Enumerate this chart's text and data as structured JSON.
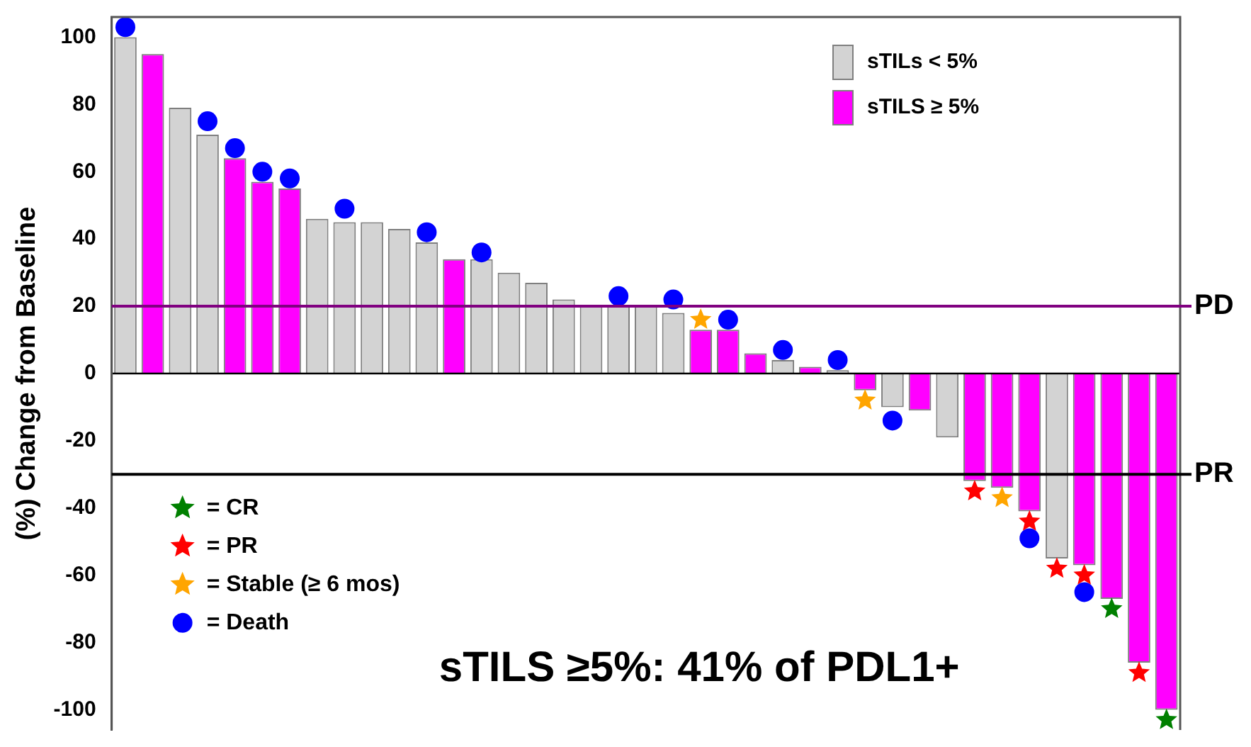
{
  "chart_data": {
    "type": "bar",
    "ylabel": "(%) Change from Baseline",
    "categories": [
      null,
      null,
      null,
      null,
      null,
      null,
      null,
      null,
      null,
      null,
      null,
      null,
      null,
      null,
      null,
      null,
      null,
      null,
      null,
      null,
      null,
      null,
      null,
      null,
      null,
      null,
      null,
      null,
      null,
      null,
      null,
      null,
      null,
      null,
      null,
      null,
      null,
      null,
      null
    ],
    "series": [
      {
        "name": "sTILs < 5%",
        "color": "#d3d3d3",
        "values": [
          100,
          null,
          79,
          71,
          null,
          null,
          null,
          46,
          45,
          45,
          43,
          39,
          null,
          34,
          30,
          27,
          22,
          20,
          20,
          20,
          18,
          null,
          null,
          null,
          4,
          null,
          1,
          null,
          -10,
          null,
          -19,
          null,
          null,
          null,
          -55,
          null,
          null,
          null,
          null
        ]
      },
      {
        "name": "sTILS ≥ 5%",
        "color": "#ff00ff",
        "values": [
          null,
          95,
          null,
          null,
          64,
          57,
          55,
          null,
          null,
          null,
          null,
          null,
          34,
          null,
          null,
          null,
          null,
          null,
          null,
          null,
          null,
          13,
          13,
          6,
          null,
          2,
          null,
          -5,
          null,
          -11,
          null,
          -32,
          -34,
          -41,
          null,
          -57,
          -67,
          -86,
          -100
        ]
      },
      {
        "name": "= CR",
        "type": "scatter",
        "marker": "star",
        "color": "#008000",
        "values": [
          null,
          null,
          null,
          null,
          null,
          null,
          null,
          null,
          null,
          null,
          null,
          null,
          null,
          null,
          null,
          null,
          null,
          null,
          null,
          null,
          null,
          null,
          null,
          null,
          null,
          null,
          null,
          null,
          null,
          null,
          null,
          null,
          null,
          null,
          null,
          null,
          -70,
          null,
          -103
        ]
      },
      {
        "name": "= PR",
        "type": "scatter",
        "marker": "star",
        "color": "#ff0000",
        "values": [
          null,
          null,
          null,
          null,
          null,
          null,
          null,
          null,
          null,
          null,
          null,
          null,
          null,
          null,
          null,
          null,
          null,
          null,
          null,
          null,
          null,
          null,
          null,
          null,
          null,
          null,
          null,
          null,
          null,
          null,
          null,
          -35,
          null,
          -44,
          -58,
          -60,
          null,
          -89,
          null
        ]
      },
      {
        "name": "= Stable (≥ 6 mos)",
        "type": "scatter",
        "marker": "star",
        "color": "#ffa500",
        "values": [
          null,
          null,
          null,
          null,
          null,
          null,
          null,
          null,
          null,
          null,
          null,
          null,
          null,
          null,
          null,
          null,
          null,
          null,
          null,
          null,
          null,
          16,
          null,
          null,
          null,
          null,
          null,
          -8,
          null,
          null,
          null,
          null,
          -37,
          null,
          null,
          null,
          null,
          null,
          null
        ]
      },
      {
        "name": "= Death",
        "type": "scatter",
        "marker": "circle",
        "color": "#0000ff",
        "values": [
          103,
          null,
          null,
          75,
          67,
          60,
          58,
          null,
          49,
          null,
          null,
          42,
          null,
          36,
          null,
          null,
          null,
          null,
          23,
          null,
          22,
          null,
          16,
          null,
          7,
          null,
          4,
          null,
          -14,
          null,
          null,
          null,
          null,
          -49,
          null,
          -65,
          null,
          null,
          null
        ]
      }
    ],
    "ylim": [
      -106,
      106
    ],
    "yticks": [
      -100,
      -80,
      -60,
      -40,
      -20,
      0,
      20,
      40,
      60,
      80,
      100
    ],
    "tick_labels": "y",
    "grid": false,
    "legend": "left",
    "ref_lines": [
      {
        "axis": "y",
        "value": 20,
        "label": "PD",
        "color": "#800080"
      },
      {
        "axis": "y",
        "value": -30,
        "label": "PR",
        "color": "#000000"
      }
    ],
    "annotations": [
      "sTILS ≥5%: 41% of PDL1+"
    ]
  }
}
